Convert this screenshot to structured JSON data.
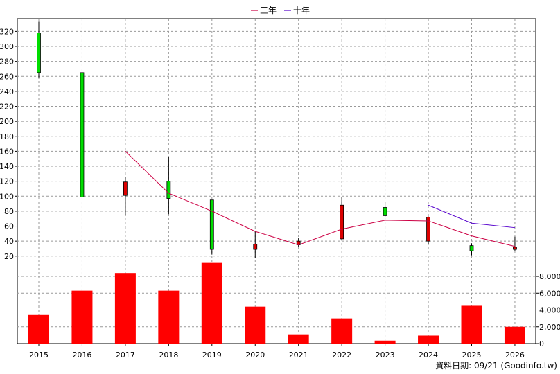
{
  "chart_data": {
    "type": "candlestick",
    "years": [
      "2015",
      "2016",
      "2017",
      "2018",
      "2019",
      "2020",
      "2021",
      "2022",
      "2023",
      "2024",
      "2025",
      "2026"
    ],
    "price_axis": {
      "ylim": [
        5,
        337
      ],
      "ticks": [
        20,
        40,
        60,
        80,
        100,
        120,
        140,
        160,
        180,
        200,
        220,
        240,
        260,
        280,
        300,
        320
      ]
    },
    "volume_axis": {
      "ylim": [
        0,
        9900
      ],
      "ticks": [
        0,
        2000,
        4000,
        6000,
        8000
      ],
      "tick_labels": [
        "0",
        "2,000",
        "4,000",
        "6,000",
        "8,000"
      ]
    },
    "candles": [
      {
        "open": 265,
        "close": 318,
        "high": 333,
        "low": 258
      },
      {
        "open": 99,
        "close": 265,
        "high": 265,
        "low": 99
      },
      {
        "open": 119,
        "close": 101,
        "high": 126,
        "low": 74
      },
      {
        "open": 97,
        "close": 120,
        "high": 152,
        "low": 76
      },
      {
        "open": 29,
        "close": 95,
        "high": 95,
        "low": 22
      },
      {
        "open": 36,
        "close": 29,
        "high": 53,
        "low": 17
      },
      {
        "open": 40,
        "close": 35,
        "high": 44,
        "low": 32
      },
      {
        "open": 88,
        "close": 43,
        "high": 99,
        "low": 41
      },
      {
        "open": 74,
        "close": 85,
        "high": 92,
        "low": 72
      },
      {
        "open": 72,
        "close": 40,
        "high": 73,
        "low": 36
      },
      {
        "open": 27,
        "close": 34,
        "high": 37,
        "low": 21
      },
      {
        "open": 32,
        "close": 29,
        "high": 46,
        "low": 27
      }
    ],
    "volume": [
      3400,
      6300,
      8400,
      6300,
      9600,
      4400,
      1100,
      3000,
      350,
      950,
      4500,
      2000
    ],
    "series": [
      {
        "name": "三年",
        "color": "#cc0044",
        "start_index": 2,
        "values": [
          160,
          104,
          80,
          53,
          35,
          56,
          68,
          67,
          47,
          33
        ]
      },
      {
        "name": "十年",
        "color": "#5500cc",
        "start_index": 9,
        "values": [
          88,
          64,
          58
        ]
      }
    ],
    "colors": {
      "up": "#00dd00",
      "down": "#dd0000",
      "volume": "#ff0000",
      "grid": "#999999"
    }
  },
  "legend": {
    "items": [
      "三年",
      "十年"
    ]
  },
  "footer": {
    "source": "資料日期: 09/21 (Goodinfo.tw)"
  }
}
